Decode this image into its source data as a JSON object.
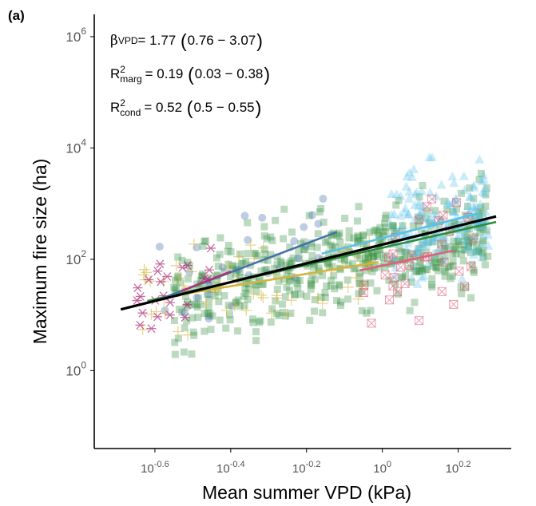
{
  "panel_label": "(a)",
  "stats": {
    "beta": {
      "symbol": "β",
      "sub": "VPD",
      "eq": " = 1.77",
      "lo": "0.76",
      "hi": "3.07"
    },
    "r2_marg": {
      "symbol": "R",
      "sup": "2",
      "sub": "marg",
      "eq": " = 0.19",
      "lo": "0.03",
      "hi": "0.38"
    },
    "r2_cond": {
      "symbol": "R",
      "sup": "2",
      "sub": "cond",
      "eq": " = 0.52",
      "lo": "0.5",
      "hi": "0.55"
    },
    "dash": "−"
  },
  "colors": {
    "overall": "#000000",
    "green": "#2e8b3a",
    "lightblue": "#5bc0e8",
    "navy": "#4670a8",
    "gold": "#d4b43a",
    "magenta": "#b0307a",
    "pink": "#e0607a"
  },
  "chart_data": {
    "type": "scatter",
    "title": "",
    "xlabel": "Mean summer VPD (kPa)",
    "ylabel": "Maximum fire size (ha)",
    "xscale": "log10",
    "yscale": "log10",
    "xlim_log10": [
      -0.76,
      0.34
    ],
    "ylim_log10": [
      -1.4,
      6.4
    ],
    "xticks": [
      {
        "base": "10",
        "exp": "-0.6",
        "log10": -0.6
      },
      {
        "base": "10",
        "exp": "-0.4",
        "log10": -0.4
      },
      {
        "base": "10",
        "exp": "-0.2",
        "log10": -0.2
      },
      {
        "base": "10",
        "exp": "0",
        "log10": 0
      },
      {
        "base": "10",
        "exp": "0.2",
        "log10": 0.2
      }
    ],
    "yticks": [
      {
        "base": "10",
        "exp": "0",
        "log10": 0
      },
      {
        "base": "10",
        "exp": "2",
        "log10": 2
      },
      {
        "base": "10",
        "exp": "4",
        "log10": 4
      },
      {
        "base": "10",
        "exp": "6",
        "log10": 6
      }
    ],
    "fit_lines": [
      {
        "name": "overall",
        "color": "overall",
        "x_log10": [
          -0.69,
          0.3
        ],
        "y_log10": [
          1.1,
          2.77
        ],
        "width": 3.2
      },
      {
        "name": "group-green",
        "color": "green",
        "x_log10": [
          -0.62,
          0.3
        ],
        "y_log10": [
          1.25,
          2.67
        ],
        "width": 2.6
      },
      {
        "name": "group-lightblue",
        "color": "lightblue",
        "x_log10": [
          -0.16,
          0.25
        ],
        "y_log10": [
          2.1,
          2.82
        ],
        "width": 2.6
      },
      {
        "name": "group-navy",
        "color": "navy",
        "x_log10": [
          -0.6,
          -0.12
        ],
        "y_log10": [
          1.25,
          2.49
        ],
        "width": 2.6
      },
      {
        "name": "group-gold",
        "color": "gold",
        "x_log10": [
          -0.54,
          -0.01
        ],
        "y_log10": [
          1.36,
          1.95
        ],
        "width": 2.6
      },
      {
        "name": "group-magenta",
        "color": "magenta",
        "x_log10": [
          -0.53,
          -0.4
        ],
        "y_log10": [
          1.43,
          1.78
        ],
        "width": 2.6
      },
      {
        "name": "group-pink",
        "color": "pink",
        "x_log10": [
          -0.06,
          0.19
        ],
        "y_log10": [
          1.8,
          2.16
        ],
        "width": 2.6
      }
    ],
    "scatter_groups": [
      {
        "name": "green squares",
        "color": "green",
        "shape": "square",
        "count": 520,
        "x_log10_range": [
          -0.55,
          0.28
        ],
        "trend_slope": 1.55,
        "trend_intercept": 2.1,
        "spread_log10": 0.75
      },
      {
        "name": "lightblue triangles",
        "color": "lightblue",
        "shape": "triangle",
        "count": 170,
        "x_log10_range": [
          0.02,
          0.28
        ],
        "trend_slope": 1.8,
        "trend_intercept": 2.4,
        "spread_log10": 0.8
      },
      {
        "name": "navy circles",
        "color": "navy",
        "shape": "circle",
        "count": 28,
        "x_log10_range": [
          -0.6,
          -0.15
        ],
        "trend_slope": 2.5,
        "trend_intercept": 2.8,
        "spread_log10": 0.6
      },
      {
        "name": "gold crosses",
        "color": "gold",
        "shape": "plus",
        "count": 55,
        "x_log10_range": [
          -0.66,
          -0.02
        ],
        "trend_slope": 1.1,
        "trend_intercept": 1.95,
        "spread_log10": 0.65
      },
      {
        "name": "magenta asterisks",
        "color": "magenta",
        "shape": "asterisk",
        "count": 24,
        "x_log10_range": [
          -0.66,
          -0.45
        ],
        "trend_slope": 2.6,
        "trend_intercept": 2.9,
        "spread_log10": 0.5
      },
      {
        "name": "pink boxed crosses",
        "color": "pink",
        "shape": "boxx",
        "count": 34,
        "x_log10_range": [
          -0.05,
          0.25
        ],
        "trend_slope": 1.4,
        "trend_intercept": 1.9,
        "spread_log10": 0.8
      }
    ]
  }
}
